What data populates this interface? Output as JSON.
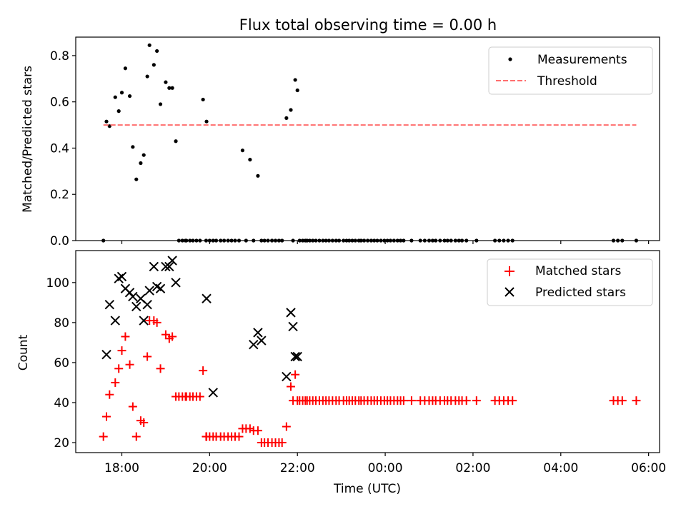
{
  "chart_data": [
    {
      "type": "scatter",
      "title": "Flux total observing time = 0.00 h",
      "xlabel": "",
      "ylabel": "Matched/Predicted stars",
      "x_unit": "hours since 00:00 UTC",
      "xlim": [
        -7.05,
        6.25
      ],
      "ylim": [
        0,
        0.88
      ],
      "yticks": [
        0.0,
        0.2,
        0.4,
        0.6,
        0.8
      ],
      "ytick_labels": [
        "0.0",
        "0.2",
        "0.4",
        "0.6",
        "0.8"
      ],
      "xticks": [
        -6,
        -4,
        -2,
        0,
        2,
        4,
        6
      ],
      "legend": {
        "location": "top-right",
        "entries": [
          {
            "label": "Measurements",
            "marker": "dot",
            "color": "#000000"
          },
          {
            "label": "Threshold",
            "marker": "dashed-line",
            "color": "#ff6f6f"
          }
        ]
      },
      "series": [
        {
          "name": "Measurements",
          "color": "#000000",
          "x": [
            -6.42,
            -6.35,
            -6.28,
            -6.15,
            -6.07,
            -6.0,
            -5.92,
            -5.82,
            -5.75,
            -5.67,
            -5.57,
            -5.5,
            -5.42,
            -5.37,
            -5.27,
            -5.2,
            -5.12,
            -5.0,
            -4.92,
            -4.85,
            -4.77,
            -4.7,
            -4.62,
            -4.55,
            -4.53,
            -4.45,
            -4.38,
            -4.3,
            -4.22,
            -4.15,
            -4.08,
            -4.07,
            -4.0,
            -3.92,
            -3.85,
            -3.75,
            -3.67,
            -3.58,
            -3.5,
            -3.42,
            -3.33,
            -3.25,
            -3.17,
            -3.08,
            -3.0,
            -2.9,
            -2.82,
            -2.75,
            -2.67,
            -2.58,
            -2.5,
            -2.42,
            -2.35,
            -2.25,
            -2.15,
            -2.1,
            -2.05,
            -2.0,
            -1.95,
            -1.88,
            -1.82,
            -1.78,
            -1.72,
            -1.65,
            -1.58,
            -1.5,
            -1.42,
            -1.35,
            -1.28,
            -1.2,
            -1.12,
            -1.05,
            -0.95,
            -0.88,
            -0.82,
            -0.75,
            -0.68,
            -0.6,
            -0.55,
            -0.48,
            -0.4,
            -0.32,
            -0.25,
            -0.18,
            -0.1,
            -0.02,
            0.05,
            0.12,
            0.2,
            0.28,
            0.35,
            0.42,
            0.6,
            0.8,
            0.9,
            1.0,
            1.08,
            1.15,
            1.25,
            1.35,
            1.42,
            1.5,
            1.6,
            1.68,
            1.75,
            1.85,
            2.08,
            2.5,
            2.6,
            2.7,
            2.8,
            2.9,
            5.2,
            5.3,
            5.4,
            5.72
          ],
          "y": [
            0.0,
            0.515,
            0.495,
            0.62,
            0.56,
            0.64,
            0.745,
            0.625,
            0.405,
            0.265,
            0.335,
            0.37,
            0.71,
            0.845,
            0.76,
            0.82,
            0.59,
            0.685,
            0.66,
            0.66,
            0.43,
            0.0,
            0.0,
            0.0,
            0.0,
            0.0,
            0.0,
            0.0,
            0.0,
            0.61,
            0.0,
            0.515,
            0.0,
            0.0,
            0.0,
            0.0,
            0.0,
            0.0,
            0.0,
            0.0,
            0.0,
            0.39,
            0.0,
            0.35,
            0.0,
            0.28,
            0.0,
            0.0,
            0.0,
            0.0,
            0.0,
            0.0,
            0.0,
            0.53,
            0.565,
            0.0,
            0.695,
            0.65,
            0.0,
            0.0,
            0.0,
            0.0,
            0.0,
            0.0,
            0.0,
            0.0,
            0.0,
            0.0,
            0.0,
            0.0,
            0.0,
            0.0,
            0.0,
            0.0,
            0.0,
            0.0,
            0.0,
            0.0,
            0.0,
            0.0,
            0.0,
            0.0,
            0.0,
            0.0,
            0.0,
            0.0,
            0.0,
            0.0,
            0.0,
            0.0,
            0.0,
            0.0,
            0.0,
            0.0,
            0.0,
            0.0,
            0.0,
            0.0,
            0.0,
            0.0,
            0.0,
            0.0,
            0.0,
            0.0,
            0.0,
            0.0,
            0.0,
            0.0,
            0.0,
            0.0,
            0.0,
            0.0,
            0.0,
            0.0,
            0.0,
            0.0
          ]
        },
        {
          "name": "Threshold",
          "color": "#ff6f6f",
          "style": "dashed",
          "x": [
            -6.42,
            5.72
          ],
          "y": [
            0.5,
            0.5
          ]
        }
      ]
    },
    {
      "type": "scatter",
      "title": "",
      "xlabel": "Time (UTC)",
      "ylabel": "Count",
      "x_unit": "hours since 00:00 UTC",
      "xlim": [
        -7.05,
        6.25
      ],
      "ylim": [
        15,
        116
      ],
      "yticks": [
        20,
        40,
        60,
        80,
        100
      ],
      "ytick_labels": [
        "20",
        "40",
        "60",
        "80",
        "100"
      ],
      "xticks": [
        -6,
        -4,
        -2,
        0,
        2,
        4,
        6
      ],
      "xtick_labels": [
        "18:00",
        "20:00",
        "22:00",
        "00:00",
        "02:00",
        "04:00",
        "06:00"
      ],
      "legend": {
        "location": "top-right",
        "entries": [
          {
            "label": "Matched stars",
            "marker": "plus",
            "color": "#ff0000"
          },
          {
            "label": "Predicted stars",
            "marker": "x",
            "color": "#000000"
          }
        ]
      },
      "series": [
        {
          "name": "Matched stars",
          "color": "#ff0000",
          "marker": "plus",
          "x": [
            -6.42,
            -6.35,
            -6.28,
            -6.15,
            -6.07,
            -6.0,
            -5.92,
            -5.82,
            -5.75,
            -5.67,
            -5.57,
            -5.5,
            -5.42,
            -5.37,
            -5.27,
            -5.2,
            -5.12,
            -5.0,
            -4.92,
            -4.85,
            -4.77,
            -4.7,
            -4.62,
            -4.55,
            -4.53,
            -4.45,
            -4.38,
            -4.3,
            -4.22,
            -4.15,
            -4.08,
            -4.07,
            -4.0,
            -3.92,
            -3.85,
            -3.75,
            -3.67,
            -3.58,
            -3.5,
            -3.42,
            -3.33,
            -3.25,
            -3.17,
            -3.08,
            -3.0,
            -2.9,
            -2.82,
            -2.75,
            -2.67,
            -2.58,
            -2.5,
            -2.42,
            -2.35,
            -2.25,
            -2.15,
            -2.1,
            -2.05,
            -2.0,
            -1.95,
            -1.88,
            -1.82,
            -1.78,
            -1.72,
            -1.65,
            -1.58,
            -1.5,
            -1.42,
            -1.35,
            -1.28,
            -1.2,
            -1.12,
            -1.05,
            -0.95,
            -0.88,
            -0.82,
            -0.75,
            -0.68,
            -0.6,
            -0.55,
            -0.48,
            -0.4,
            -0.32,
            -0.25,
            -0.18,
            -0.1,
            -0.02,
            0.05,
            0.12,
            0.2,
            0.28,
            0.35,
            0.42,
            0.6,
            0.8,
            0.9,
            1.0,
            1.08,
            1.15,
            1.25,
            1.35,
            1.42,
            1.5,
            1.6,
            1.68,
            1.75,
            1.85,
            2.08,
            2.5,
            2.6,
            2.7,
            2.8,
            2.9,
            5.2,
            5.3,
            5.4,
            5.72
          ],
          "y": [
            23,
            33,
            44,
            50,
            57,
            66,
            73,
            59,
            38,
            23,
            31,
            30,
            63,
            81,
            81,
            80,
            57,
            74,
            72,
            73,
            43,
            43,
            43,
            43,
            43,
            43,
            43,
            43,
            43,
            56,
            23,
            23,
            23,
            23,
            23,
            23,
            23,
            23,
            23,
            23,
            23,
            27,
            27,
            27,
            26,
            26,
            20,
            20,
            20,
            20,
            20,
            20,
            20,
            28,
            48,
            41,
            54,
            41,
            41,
            41,
            41,
            41,
            41,
            41,
            41,
            41,
            41,
            41,
            41,
            41,
            41,
            41,
            41,
            41,
            41,
            41,
            41,
            41,
            41,
            41,
            41,
            41,
            41,
            41,
            41,
            41,
            41,
            41,
            41,
            41,
            41,
            41,
            41,
            41,
            41,
            41,
            41,
            41,
            41,
            41,
            41,
            41,
            41,
            41,
            41,
            41,
            41,
            41,
            41,
            41,
            41,
            41,
            41,
            41,
            41,
            41
          ]
        },
        {
          "name": "Predicted stars",
          "color": "#000000",
          "marker": "x",
          "x": [
            -6.35,
            -6.28,
            -6.15,
            -6.07,
            -6.0,
            -5.92,
            -5.82,
            -5.75,
            -5.67,
            -5.57,
            -5.5,
            -5.42,
            -5.37,
            -5.27,
            -5.2,
            -5.12,
            -5.0,
            -4.92,
            -4.85,
            -4.77,
            -4.07,
            -3.92,
            -3.0,
            -2.9,
            -2.82,
            -2.25,
            -2.15,
            -2.1,
            -2.05,
            -2.0
          ],
          "y": [
            64,
            89,
            81,
            102,
            103,
            97,
            95,
            93,
            88,
            92,
            81,
            89,
            96,
            108,
            98,
            97,
            108,
            108,
            111,
            100,
            92,
            45,
            69,
            75,
            71,
            53,
            85,
            78,
            63,
            63
          ]
        }
      ]
    }
  ]
}
